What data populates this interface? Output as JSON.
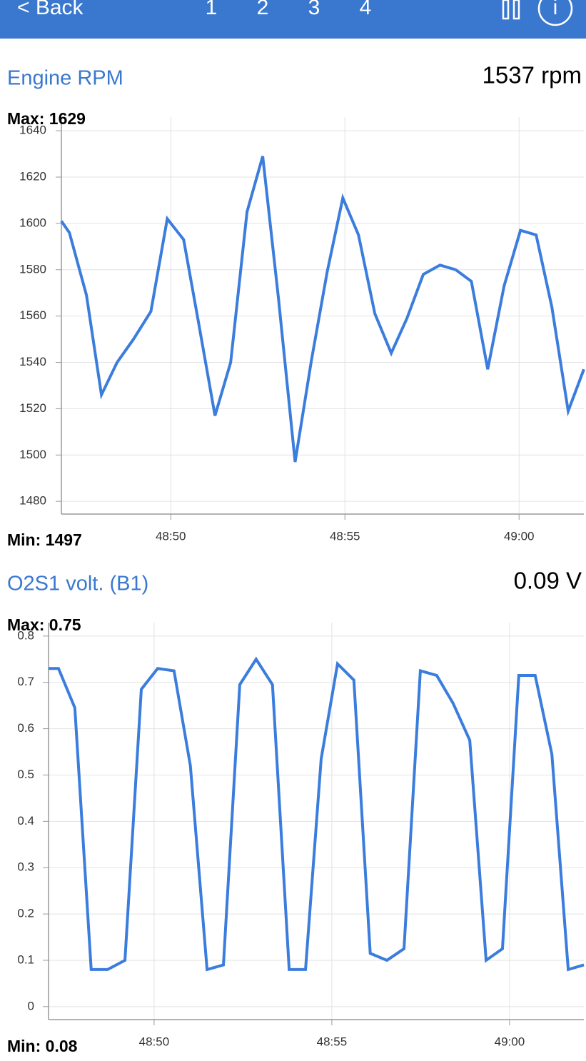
{
  "header": {
    "back": "< Back",
    "tabs": [
      "1",
      "2",
      "3",
      "4"
    ],
    "info": "i"
  },
  "chart_data": [
    {
      "type": "line",
      "title": "Engine RPM",
      "current_value": "1537 rpm",
      "max_label": "Max: 1629",
      "min_label": "Min: 1497",
      "x": [
        2926.86,
        2927.09,
        2927.58,
        2928.01,
        2928.46,
        2928.93,
        2929.43,
        2929.9,
        2930.37,
        2930.8,
        2931.27,
        2931.72,
        2932.19,
        2932.64,
        2933.09,
        2933.57,
        2934.04,
        2934.49,
        2934.94,
        2935.39,
        2935.86,
        2936.33,
        2936.78,
        2937.25,
        2937.73,
        2938.18,
        2938.63,
        2939.1,
        2939.57,
        2940.04,
        2940.49,
        2940.94,
        2941.41,
        2941.86
      ],
      "values": [
        1601,
        1596,
        1569,
        1526,
        1540,
        1550,
        1562,
        1602,
        1593,
        1557,
        1517,
        1540,
        1605,
        1629,
        1568,
        1497,
        1541,
        1579,
        1611,
        1595,
        1561,
        1544,
        1559,
        1578,
        1582,
        1580,
        1575,
        1537,
        1573,
        1597,
        1595,
        1564,
        1519,
        1537
      ],
      "color": "#3b7ddd",
      "xlim": [
        2926.86,
        2941.86
      ],
      "xticks": [
        {
          "value": 2930,
          "label": "48:50"
        },
        {
          "value": 2935,
          "label": "48:55"
        },
        {
          "value": 2940,
          "label": "49:00"
        }
      ],
      "ylim": [
        1474.5,
        1645.9
      ],
      "yticks": [
        1480,
        1500,
        1520,
        1540,
        1560,
        1580,
        1600,
        1620,
        1640
      ],
      "grid": true
    },
    {
      "type": "line",
      "title": "O2S1 volt. (B1)",
      "current_value": "0.09 V",
      "max_label": "Max: 0.75",
      "min_label": "Min: 0.08",
      "x": [
        2927.03,
        2927.31,
        2927.77,
        2928.23,
        2928.69,
        2929.18,
        2929.64,
        2930.1,
        2930.56,
        2931.02,
        2931.49,
        2931.95,
        2932.41,
        2932.87,
        2933.33,
        2933.8,
        2934.26,
        2934.7,
        2935.16,
        2935.62,
        2936.08,
        2936.55,
        2937.03,
        2937.49,
        2937.95,
        2938.41,
        2938.88,
        2939.34,
        2939.8,
        2940.26,
        2940.72,
        2941.19,
        2941.65,
        2942.09
      ],
      "values": [
        0.73,
        0.73,
        0.645,
        0.08,
        0.08,
        0.1,
        0.685,
        0.73,
        0.725,
        0.52,
        0.08,
        0.09,
        0.695,
        0.75,
        0.695,
        0.08,
        0.08,
        0.535,
        0.74,
        0.705,
        0.115,
        0.1,
        0.125,
        0.725,
        0.715,
        0.655,
        0.575,
        0.1,
        0.125,
        0.715,
        0.715,
        0.545,
        0.08,
        0.09
      ],
      "color": "#3b7ddd",
      "xlim": [
        2927.03,
        2942.09
      ],
      "xticks": [
        {
          "value": 2930,
          "label": "48:50"
        },
        {
          "value": 2935,
          "label": "48:55"
        },
        {
          "value": 2940,
          "label": "49:00"
        }
      ],
      "ylim": [
        -0.028,
        0.829
      ],
      "yticks": [
        0,
        0.1,
        0.2,
        0.3,
        0.4,
        0.5,
        0.6,
        0.7,
        0.8
      ],
      "grid": true
    }
  ]
}
